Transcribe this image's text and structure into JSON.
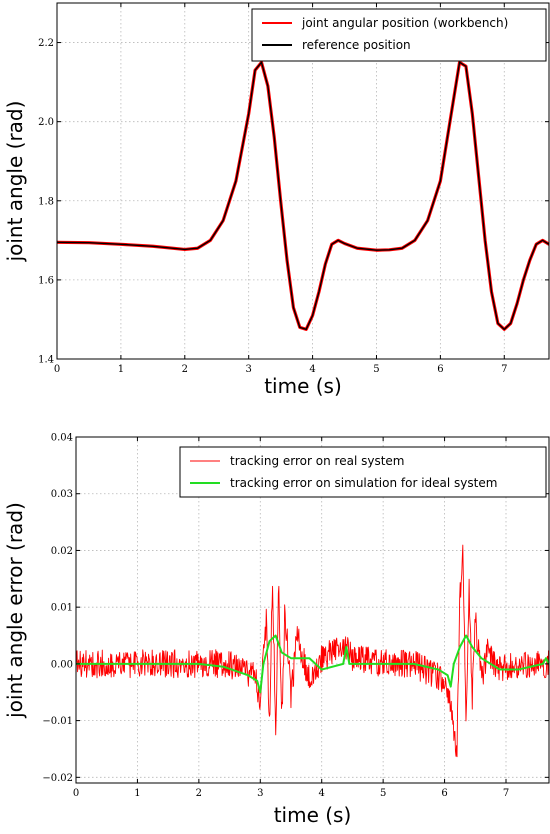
{
  "chart_data": [
    {
      "type": "line",
      "xlabel": "time (s)",
      "ylabel": "joint angle (rad)",
      "xlim": [
        0,
        7.7
      ],
      "ylim": [
        1.4,
        2.3
      ],
      "x_ticks": [
        0,
        1,
        2,
        3,
        4,
        5,
        6,
        7
      ],
      "y_ticks": [
        1.4,
        1.6,
        1.8,
        2.0,
        2.2
      ],
      "y_tick_labels": [
        "1.4",
        "1.6",
        "1.8",
        "2.0",
        "2.2"
      ],
      "grid": true,
      "legend_position": "top-right",
      "series": [
        {
          "name": "joint angular position (workbench)",
          "color": "#ff0000",
          "x": [
            0,
            0.5,
            1.0,
            1.5,
            2.0,
            2.2,
            2.4,
            2.6,
            2.8,
            3.0,
            3.1,
            3.2,
            3.3,
            3.4,
            3.5,
            3.6,
            3.7,
            3.8,
            3.9,
            4.0,
            4.1,
            4.2,
            4.3,
            4.4,
            4.5,
            4.7,
            5.0,
            5.2,
            5.4,
            5.6,
            5.8,
            6.0,
            6.2,
            6.3,
            6.4,
            6.5,
            6.6,
            6.7,
            6.8,
            6.9,
            7.0,
            7.1,
            7.2,
            7.3,
            7.4,
            7.5,
            7.6,
            7.7
          ],
          "y": [
            1.695,
            1.694,
            1.69,
            1.685,
            1.677,
            1.68,
            1.7,
            1.75,
            1.85,
            2.02,
            2.13,
            2.15,
            2.09,
            1.96,
            1.8,
            1.65,
            1.53,
            1.48,
            1.475,
            1.51,
            1.57,
            1.64,
            1.69,
            1.7,
            1.692,
            1.68,
            1.675,
            1.676,
            1.68,
            1.7,
            1.75,
            1.85,
            2.05,
            2.15,
            2.14,
            2.02,
            1.86,
            1.7,
            1.57,
            1.49,
            1.475,
            1.49,
            1.54,
            1.6,
            1.65,
            1.69,
            1.7,
            1.69
          ]
        },
        {
          "name": "reference position",
          "color": "#000000",
          "x": [
            0,
            0.5,
            1.0,
            1.5,
            2.0,
            2.2,
            2.4,
            2.6,
            2.8,
            3.0,
            3.1,
            3.2,
            3.3,
            3.4,
            3.5,
            3.6,
            3.7,
            3.8,
            3.9,
            4.0,
            4.1,
            4.2,
            4.3,
            4.4,
            4.5,
            4.7,
            5.0,
            5.2,
            5.4,
            5.6,
            5.8,
            6.0,
            6.2,
            6.3,
            6.4,
            6.5,
            6.6,
            6.7,
            6.8,
            6.9,
            7.0,
            7.1,
            7.2,
            7.3,
            7.4,
            7.5,
            7.6,
            7.7
          ],
          "y": [
            1.695,
            1.694,
            1.69,
            1.685,
            1.677,
            1.68,
            1.7,
            1.75,
            1.85,
            2.02,
            2.13,
            2.15,
            2.09,
            1.96,
            1.8,
            1.65,
            1.53,
            1.48,
            1.475,
            1.51,
            1.57,
            1.64,
            1.69,
            1.7,
            1.692,
            1.68,
            1.675,
            1.676,
            1.68,
            1.7,
            1.75,
            1.85,
            2.05,
            2.15,
            2.14,
            2.02,
            1.86,
            1.7,
            1.57,
            1.49,
            1.475,
            1.49,
            1.54,
            1.6,
            1.65,
            1.69,
            1.7,
            1.69
          ]
        }
      ]
    },
    {
      "type": "line",
      "xlabel": "time (s)",
      "ylabel": "joint angle error (rad)",
      "xlim": [
        0,
        7.7
      ],
      "ylim": [
        -0.021,
        0.04
      ],
      "x_ticks": [
        0,
        1,
        2,
        3,
        4,
        5,
        6,
        7
      ],
      "y_ticks": [
        -0.02,
        -0.01,
        0.0,
        0.01,
        0.02,
        0.03,
        0.04
      ],
      "y_tick_labels": [
        "−0.02",
        "−0.01",
        "0.00",
        "0.01",
        "0.02",
        "0.03",
        "0.04"
      ],
      "grid": true,
      "legend_position": "top-right",
      "series": [
        {
          "name": "tracking error on real system",
          "color": "#ff0000",
          "noise_amplitude": 0.0025,
          "x": [
            0,
            1.0,
            2.0,
            2.5,
            2.9,
            3.0,
            3.1,
            3.15,
            3.2,
            3.25,
            3.3,
            3.35,
            3.4,
            3.5,
            3.6,
            3.8,
            4.0,
            4.4,
            4.5,
            5.0,
            5.5,
            6.0,
            6.1,
            6.2,
            6.25,
            6.3,
            6.35,
            6.4,
            6.45,
            6.5,
            6.6,
            6.7,
            6.9,
            7.2,
            7.7
          ],
          "y": [
            0.0,
            0.0,
            0.0,
            0.0,
            -0.002,
            -0.006,
            0.008,
            -0.011,
            0.016,
            -0.013,
            0.014,
            -0.01,
            0.01,
            -0.006,
            0.005,
            -0.003,
            0.001,
            0.003,
            0.001,
            0.0,
            0.0,
            -0.003,
            -0.008,
            -0.016,
            0.012,
            0.02,
            -0.01,
            0.013,
            -0.006,
            0.008,
            -0.003,
            0.002,
            -0.001,
            0.0,
            0.0
          ]
        },
        {
          "name": "tracking error on simulation for ideal system",
          "color": "#22dd22",
          "x": [
            0,
            1.0,
            2.0,
            2.4,
            2.8,
            2.95,
            3.0,
            3.05,
            3.15,
            3.25,
            3.35,
            3.5,
            3.8,
            4.0,
            4.35,
            4.4,
            4.45,
            4.7,
            5.0,
            5.5,
            5.9,
            6.05,
            6.1,
            6.15,
            6.25,
            6.35,
            6.45,
            6.6,
            6.9,
            7.2,
            7.6,
            7.65,
            7.7
          ],
          "y": [
            0.0,
            0.0,
            0.0,
            -0.0005,
            -0.002,
            -0.003,
            -0.005,
            0.0,
            0.004,
            0.005,
            0.002,
            0.001,
            0.001,
            -0.001,
            0.0,
            0.003,
            0.0,
            0.0,
            0.0,
            0.0,
            -0.001,
            -0.002,
            -0.004,
            0.0,
            0.003,
            0.005,
            0.003,
            0.001,
            -0.001,
            -0.001,
            0.0,
            0.001,
            0.0
          ]
        }
      ]
    }
  ]
}
